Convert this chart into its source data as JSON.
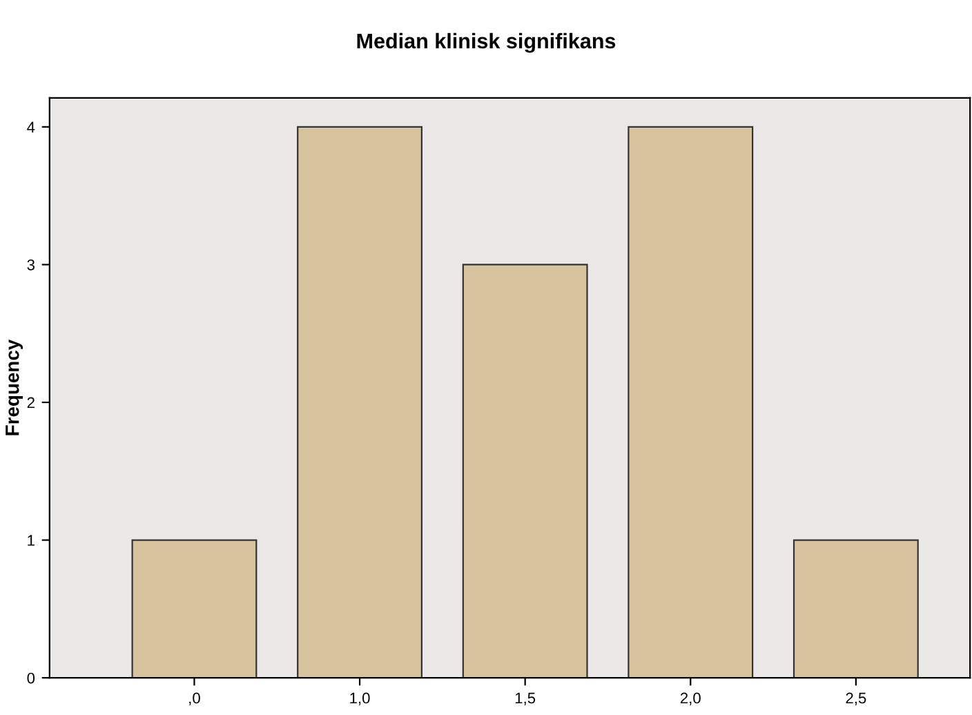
{
  "chart_data": {
    "type": "bar",
    "title": "Median klinisk signifikans",
    "ylabel": "Frequency",
    "categories": [
      ",0",
      "1,0",
      "1,5",
      "2,0",
      "2,5"
    ],
    "values": [
      1,
      4,
      3,
      4,
      1
    ],
    "color": "#d7c49e",
    "ylim": [
      0,
      4.21
    ],
    "yticks": [
      0,
      1,
      2,
      3,
      4
    ],
    "grid": false
  }
}
